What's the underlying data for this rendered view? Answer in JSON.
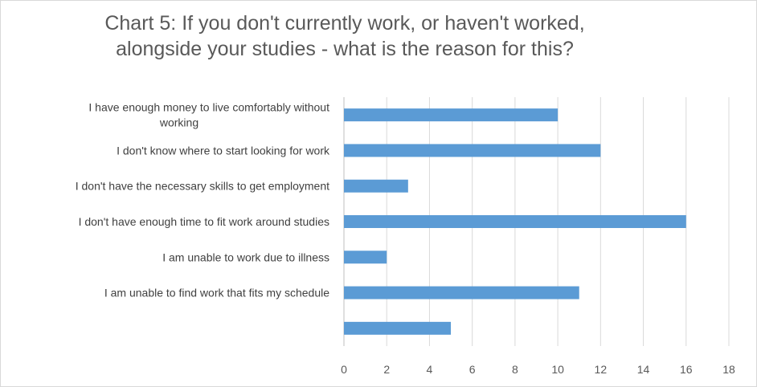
{
  "chart_data": {
    "type": "bar",
    "orientation": "horizontal",
    "title_lines": [
      "Chart 5: If you don't currently work, or haven't worked,",
      "alongside your studies - what is the reason for this?"
    ],
    "categories": [
      [
        "I have enough money to live comfortably without",
        "working"
      ],
      [
        "I don't know where to start looking for work"
      ],
      [
        "I don't have the necessary skills to get employment"
      ],
      [
        "I don't have enough time to fit work around studies"
      ],
      [
        "I am unable to work due to illness"
      ],
      [
        "I am unable to find work that fits my schedule"
      ],
      [
        ""
      ]
    ],
    "values": [
      10,
      12,
      3,
      16,
      2,
      11,
      5
    ],
    "xlim": [
      0,
      18
    ],
    "xticks": [
      "0",
      "2",
      "4",
      "6",
      "8",
      "10",
      "12",
      "14",
      "16",
      "18"
    ],
    "xlabel": "",
    "ylabel": "",
    "grid": "vertical",
    "legend": "none",
    "bar_color": "#5b9bd5",
    "grid_color": "#d9d9d9",
    "axis_color": "#bfbfbf"
  }
}
